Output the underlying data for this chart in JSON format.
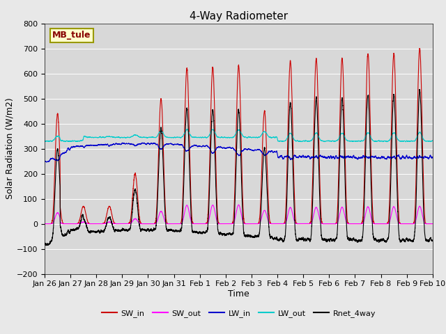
{
  "title": "4-Way Radiometer",
  "xlabel": "Time",
  "ylabel": "Solar Radiation (W/m2)",
  "ylim": [
    -200,
    800
  ],
  "yticks": [
    -200,
    -100,
    0,
    100,
    200,
    300,
    400,
    500,
    600,
    700,
    800
  ],
  "x_labels": [
    "Jan 26",
    "Jan 27",
    "Jan 28",
    "Jan 29",
    "Jan 30",
    "Jan 31",
    "Feb 1",
    "Feb 2",
    "Feb 3",
    "Feb 4",
    "Feb 5",
    "Feb 6",
    "Feb 7",
    "Feb 8",
    "Feb 9",
    "Feb 10"
  ],
  "station_label": "MB_tule",
  "fig_facecolor": "#e8e8e8",
  "ax_facecolor": "#d8d8d8",
  "colors": {
    "SW_in": "#cc0000",
    "SW_out": "#ff00ff",
    "LW_in": "#0000cc",
    "LW_out": "#00cccc",
    "Rnet_4way": "#000000"
  },
  "linewidth": 0.8,
  "title_fontsize": 11,
  "label_fontsize": 9,
  "tick_fontsize": 8,
  "legend_fontsize": 8,
  "n_points": 8640,
  "n_days": 15
}
